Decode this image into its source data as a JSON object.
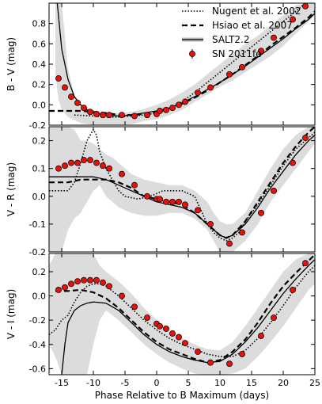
{
  "chart_data": [
    {
      "type": "line",
      "ylabel": "B - V (mag)",
      "ylim": [
        -0.2,
        1.0
      ],
      "yticks": [
        -0.2,
        0.0,
        0.2,
        0.4,
        0.6,
        0.8
      ],
      "xlim": [
        -17,
        25
      ],
      "band": {
        "x": [
          -16,
          -15.5,
          -15,
          -14,
          -13,
          -12,
          -10,
          -8,
          -6,
          -4,
          -2,
          0,
          2,
          4,
          6,
          8,
          10,
          12,
          14,
          16,
          18,
          20,
          22,
          24,
          25
        ],
        "lo": [
          0.3,
          0.05,
          -0.05,
          -0.12,
          -0.15,
          -0.18,
          -0.2,
          -0.2,
          -0.2,
          -0.19,
          -0.16,
          -0.14,
          -0.1,
          -0.05,
          0.03,
          0.1,
          0.18,
          0.24,
          0.32,
          0.4,
          0.48,
          0.58,
          0.7,
          0.82,
          0.88
        ],
        "hi": [
          1.0,
          1.0,
          1.0,
          0.35,
          0.1,
          0.0,
          -0.05,
          -0.08,
          -0.08,
          -0.07,
          -0.04,
          0.0,
          0.05,
          0.12,
          0.2,
          0.3,
          0.4,
          0.5,
          0.6,
          0.68,
          0.78,
          0.88,
          0.98,
          1.0,
          1.0
        ]
      },
      "series": [
        {
          "name": "Nugent et al. 2002",
          "style": "dotted",
          "x": [
            -13,
            -10,
            -8,
            -6,
            -4,
            -2,
            0,
            2,
            4,
            6,
            8,
            10,
            12,
            14,
            16,
            18,
            20,
            22,
            23.5
          ],
          "y": [
            -0.1,
            -0.11,
            -0.12,
            -0.12,
            -0.11,
            -0.1,
            -0.08,
            -0.04,
            0.03,
            0.12,
            0.22,
            0.32,
            0.42,
            0.52,
            0.62,
            0.72,
            0.82,
            0.92,
            1.0
          ]
        },
        {
          "name": "Hsiao et al. 2007",
          "style": "dashed",
          "x": [
            -17,
            -14,
            -12,
            -10,
            -8,
            -6,
            -4,
            -2,
            0,
            2,
            4,
            6,
            8,
            10,
            12,
            14,
            16,
            18,
            20,
            22,
            24,
            25
          ],
          "y": [
            -0.06,
            -0.06,
            -0.06,
            -0.07,
            -0.08,
            -0.1,
            -0.1,
            -0.09,
            -0.07,
            -0.04,
            0.01,
            0.07,
            0.14,
            0.22,
            0.3,
            0.39,
            0.48,
            0.58,
            0.67,
            0.76,
            0.86,
            0.92
          ]
        },
        {
          "name": "SALT2.2",
          "style": "solid",
          "x": [
            -15.7,
            -15,
            -14,
            -13,
            -12,
            -11,
            -10,
            -8,
            -6,
            -4,
            -2,
            0,
            2,
            4,
            6,
            8,
            10,
            12,
            14,
            16,
            18,
            20,
            22,
            24,
            25
          ],
          "y": [
            1.0,
            0.55,
            0.25,
            0.08,
            0.0,
            -0.05,
            -0.08,
            -0.1,
            -0.11,
            -0.1,
            -0.08,
            -0.06,
            -0.03,
            0.02,
            0.08,
            0.15,
            0.22,
            0.3,
            0.38,
            0.47,
            0.56,
            0.65,
            0.75,
            0.84,
            0.9
          ]
        }
      ],
      "points": {
        "name": "SN 2011fe",
        "x": [
          -15.5,
          -14.5,
          -13.5,
          -12.5,
          -11.5,
          -10.5,
          -9.5,
          -8.5,
          -7.5,
          -5.5,
          -3.5,
          -1.5,
          0.0,
          0.5,
          1.5,
          2.5,
          3.5,
          4.5,
          6.5,
          8.5,
          11.5,
          13.5,
          16.5,
          18.5,
          21.5,
          23.5
        ],
        "y": [
          0.26,
          0.17,
          0.08,
          0.02,
          -0.03,
          -0.07,
          -0.09,
          -0.1,
          -0.1,
          -0.1,
          -0.11,
          -0.1,
          -0.09,
          -0.06,
          -0.05,
          -0.03,
          0.0,
          0.03,
          0.12,
          0.17,
          0.3,
          0.37,
          0.53,
          0.66,
          0.84,
          0.97
        ]
      },
      "legend": {
        "location": "top-right",
        "entries": [
          "Nugent et al. 2002",
          "Hsiao et al. 2007",
          "SALT2.2",
          "SN 2011fe"
        ]
      }
    },
    {
      "type": "line",
      "ylabel": "V - R (mag)",
      "ylim": [
        -0.2,
        0.25
      ],
      "yticks": [
        -0.2,
        -0.1,
        0.0,
        0.1,
        0.2
      ],
      "xlim": [
        -17,
        25
      ],
      "band": {
        "x": [
          -17,
          -16,
          -15,
          -14,
          -13,
          -12,
          -11,
          -10,
          -9,
          -8,
          -7,
          -6,
          -4,
          -2,
          0,
          2,
          4,
          6,
          8,
          9,
          10,
          11,
          12,
          14,
          16,
          18,
          20,
          22,
          24,
          25
        ],
        "lo": [
          -0.2,
          -0.2,
          -0.2,
          -0.12,
          -0.08,
          -0.06,
          -0.02,
          0.02,
          0.04,
          0.0,
          -0.02,
          -0.04,
          -0.06,
          -0.07,
          -0.07,
          -0.06,
          -0.06,
          -0.08,
          -0.12,
          -0.16,
          -0.2,
          -0.2,
          -0.2,
          -0.16,
          -0.1,
          -0.02,
          0.04,
          0.1,
          0.16,
          0.19
        ],
        "hi": [
          0.25,
          0.25,
          0.25,
          0.25,
          0.24,
          0.2,
          0.2,
          0.19,
          0.17,
          0.15,
          0.14,
          0.12,
          0.08,
          0.06,
          0.05,
          0.04,
          0.04,
          0.02,
          -0.02,
          -0.06,
          -0.09,
          -0.1,
          -0.1,
          -0.06,
          0.02,
          0.1,
          0.17,
          0.22,
          0.25,
          0.25
        ]
      },
      "series": [
        {
          "name": "Nugent et al. 2002",
          "style": "dotted",
          "x": [
            -17,
            -14,
            -13,
            -12,
            -11,
            -10,
            -9.5,
            -9,
            -8,
            -7,
            -6,
            -5,
            -3,
            -1,
            0,
            1,
            2,
            3,
            4,
            6,
            7,
            8,
            9,
            10,
            11,
            12,
            13,
            14,
            16,
            18,
            20,
            22,
            24,
            25
          ],
          "y": [
            0.02,
            0.02,
            0.05,
            0.12,
            0.2,
            0.24,
            0.22,
            0.16,
            0.1,
            0.06,
            0.02,
            0.0,
            -0.01,
            0.0,
            0.01,
            0.02,
            0.02,
            0.02,
            0.02,
            0.0,
            -0.05,
            -0.1,
            -0.13,
            -0.15,
            -0.16,
            -0.15,
            -0.13,
            -0.09,
            -0.03,
            0.04,
            0.11,
            0.17,
            0.21,
            0.23
          ]
        },
        {
          "name": "Hsiao et al. 2007",
          "style": "dashed",
          "x": [
            -17,
            -14,
            -12,
            -10,
            -8,
            -6,
            -4,
            -2,
            0,
            2,
            4,
            6,
            8,
            10,
            11,
            12,
            14,
            16,
            18,
            20,
            22,
            24,
            25
          ],
          "y": [
            0.05,
            0.05,
            0.06,
            0.06,
            0.06,
            0.05,
            0.03,
            0.0,
            -0.01,
            -0.02,
            -0.03,
            -0.06,
            -0.1,
            -0.14,
            -0.15,
            -0.14,
            -0.09,
            -0.02,
            0.05,
            0.12,
            0.18,
            0.23,
            0.25
          ]
        },
        {
          "name": "SALT2.2",
          "style": "solid",
          "x": [
            -17,
            -14,
            -12,
            -10,
            -8,
            -6,
            -4,
            -2,
            0,
            2,
            4,
            6,
            8,
            10,
            11,
            12,
            14,
            16,
            18,
            20,
            22,
            24,
            25
          ],
          "y": [
            0.07,
            0.07,
            0.07,
            0.07,
            0.06,
            0.04,
            0.02,
            0.0,
            -0.02,
            -0.03,
            -0.04,
            -0.06,
            -0.1,
            -0.14,
            -0.15,
            -0.14,
            -0.1,
            -0.04,
            0.03,
            0.09,
            0.15,
            0.2,
            0.22
          ]
        }
      ],
      "points": {
        "name": "SN 2011fe",
        "x": [
          -15.5,
          -14.5,
          -13.5,
          -12.5,
          -11.5,
          -10.5,
          -9.5,
          -8.5,
          -7.5,
          -5.5,
          -3.5,
          -1.5,
          0.0,
          0.5,
          1.5,
          2.5,
          3.5,
          4.5,
          6.5,
          8.5,
          11.5,
          13.5,
          16.5,
          18.5,
          21.5,
          23.5
        ],
        "y": [
          0.1,
          0.11,
          0.12,
          0.12,
          0.13,
          0.13,
          0.12,
          0.11,
          0.1,
          0.08,
          0.04,
          0.0,
          -0.01,
          -0.01,
          -0.02,
          -0.02,
          -0.02,
          -0.03,
          -0.05,
          -0.1,
          -0.17,
          -0.13,
          -0.06,
          0.02,
          0.12,
          0.21
        ]
      }
    },
    {
      "type": "line",
      "ylabel": "V - I (mag)",
      "ylim": [
        -0.65,
        0.35
      ],
      "yticks": [
        -0.6,
        -0.4,
        -0.2,
        0.0,
        0.2
      ],
      "xlim": [
        -17,
        25
      ],
      "xlabel": "Phase Relative to B Maximum (days)",
      "xticks": [
        -15,
        -10,
        -5,
        0,
        5,
        10,
        15,
        20,
        25
      ],
      "band": {
        "x": [
          -17,
          -16,
          -15,
          -14,
          -13,
          -12,
          -11,
          -10,
          -9,
          -8,
          -6,
          -4,
          -2,
          0,
          2,
          4,
          6,
          8,
          10,
          12,
          14,
          16,
          18,
          20,
          22,
          24,
          25
        ],
        "lo": [
          -0.4,
          -0.5,
          -0.65,
          -0.65,
          -0.65,
          -0.65,
          -0.65,
          -0.4,
          -0.2,
          -0.12,
          -0.2,
          -0.3,
          -0.4,
          -0.48,
          -0.55,
          -0.6,
          -0.64,
          -0.65,
          -0.65,
          -0.64,
          -0.6,
          -0.5,
          -0.38,
          -0.25,
          -0.1,
          0.05,
          0.1
        ],
        "hi": [
          0.25,
          0.35,
          0.35,
          0.35,
          0.35,
          0.35,
          0.35,
          0.35,
          0.25,
          0.2,
          0.12,
          0.02,
          -0.1,
          -0.2,
          -0.28,
          -0.35,
          -0.4,
          -0.44,
          -0.45,
          -0.38,
          -0.25,
          -0.1,
          0.05,
          0.2,
          0.3,
          0.35,
          0.35
        ]
      },
      "series": [
        {
          "name": "Nugent et al. 2002",
          "style": "dotted",
          "x": [
            -17,
            -16,
            -15,
            -14,
            -13,
            -12,
            -11,
            -10,
            -9,
            -8,
            -6,
            -4,
            -2,
            0,
            2,
            4,
            6,
            8,
            10,
            12,
            14,
            16,
            18,
            20,
            22,
            24,
            25
          ],
          "y": [
            -0.32,
            -0.28,
            -0.2,
            -0.16,
            -0.05,
            0.03,
            0.08,
            0.1,
            0.1,
            0.08,
            0.0,
            -0.1,
            -0.2,
            -0.28,
            -0.35,
            -0.4,
            -0.44,
            -0.48,
            -0.5,
            -0.5,
            -0.45,
            -0.35,
            -0.22,
            -0.08,
            0.07,
            0.2,
            0.25
          ]
        },
        {
          "name": "Hsiao et al. 2007",
          "style": "dashed",
          "x": [
            -16,
            -14,
            -12,
            -10,
            -8,
            -6,
            -4,
            -2,
            0,
            2,
            4,
            6,
            8,
            10,
            12,
            14,
            16,
            18,
            20,
            22,
            24,
            25
          ],
          "y": [
            0.04,
            0.04,
            0.05,
            0.03,
            -0.02,
            -0.1,
            -0.2,
            -0.3,
            -0.38,
            -0.44,
            -0.48,
            -0.52,
            -0.55,
            -0.53,
            -0.46,
            -0.36,
            -0.22,
            -0.06,
            0.08,
            0.19,
            0.29,
            0.34
          ]
        },
        {
          "name": "SALT2.2",
          "style": "solid",
          "x": [
            -15,
            -14.5,
            -14,
            -13,
            -12,
            -11,
            -10,
            -8,
            -6,
            -4,
            -2,
            0,
            2,
            4,
            6,
            8,
            10,
            12,
            14,
            16,
            18,
            20,
            22,
            24,
            25
          ],
          "y": [
            -0.65,
            -0.4,
            -0.22,
            -0.12,
            -0.08,
            -0.06,
            -0.05,
            -0.06,
            -0.12,
            -0.22,
            -0.32,
            -0.4,
            -0.46,
            -0.5,
            -0.53,
            -0.55,
            -0.54,
            -0.48,
            -0.38,
            -0.26,
            -0.12,
            0.02,
            0.14,
            0.25,
            0.3
          ]
        }
      ],
      "points": {
        "name": "SN 2011fe",
        "x": [
          -15.5,
          -14.5,
          -13.5,
          -12.5,
          -11.5,
          -10.5,
          -9.5,
          -8.5,
          -7.5,
          -5.5,
          -3.5,
          -1.5,
          0.0,
          0.5,
          1.5,
          2.5,
          3.5,
          4.5,
          6.5,
          8.5,
          11.5,
          13.5,
          16.5,
          18.5,
          21.5,
          23.5
        ],
        "y": [
          0.05,
          0.07,
          0.1,
          0.12,
          0.13,
          0.13,
          0.13,
          0.11,
          0.08,
          0.0,
          -0.09,
          -0.18,
          -0.23,
          -0.25,
          -0.27,
          -0.31,
          -0.34,
          -0.39,
          -0.46,
          -0.55,
          -0.56,
          -0.48,
          -0.33,
          -0.18,
          0.05,
          0.27
        ]
      }
    }
  ]
}
